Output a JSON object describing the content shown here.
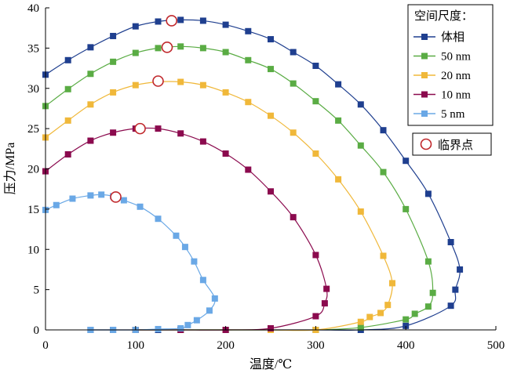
{
  "chart_data": {
    "type": "line",
    "xlabel": "温度/℃",
    "ylabel": "压力/MPa",
    "xlim": [
      0,
      500
    ],
    "ylim": [
      0,
      40
    ],
    "xticks": [
      "0",
      "100",
      "200",
      "300",
      "400",
      "500"
    ],
    "yticks": [
      "0",
      "5",
      "10",
      "15",
      "20",
      "25",
      "30",
      "35",
      "40"
    ],
    "grid": false,
    "legend_title": "空间尺度：",
    "legend_placement": "top-right",
    "series": [
      {
        "name": "体相",
        "color": "#1f3f8f",
        "x": [
          0,
          25,
          50,
          75,
          100,
          125,
          150,
          175,
          200,
          225,
          250,
          275,
          300,
          325,
          350,
          375,
          400,
          425,
          450,
          460,
          455,
          450,
          400,
          350,
          300,
          250,
          200,
          150,
          125,
          100,
          75,
          50
        ],
        "y": [
          31.7,
          33.5,
          35.1,
          36.5,
          37.7,
          38.3,
          38.5,
          38.4,
          37.9,
          37.1,
          36.1,
          34.5,
          32.8,
          30.5,
          28,
          24.8,
          21,
          16.9,
          10.9,
          7.5,
          5,
          3,
          0.5,
          0,
          0,
          0,
          0,
          0,
          0,
          0,
          0,
          0
        ]
      },
      {
        "name": "50 nm",
        "color": "#5aac44",
        "x": [
          0,
          25,
          50,
          75,
          100,
          125,
          150,
          175,
          200,
          225,
          250,
          275,
          300,
          325,
          350,
          375,
          400,
          425,
          430,
          425,
          410,
          400,
          350,
          300,
          250,
          200,
          150,
          100
        ],
        "y": [
          27.8,
          29.9,
          31.8,
          33.3,
          34.4,
          35,
          35.2,
          35,
          34.5,
          33.5,
          32.4,
          30.6,
          28.4,
          26,
          22.9,
          19.6,
          15,
          8.5,
          4.6,
          2.9,
          2,
          1.3,
          0.3,
          0,
          0,
          0,
          0,
          0
        ],
        "critical_point_index": 5
      },
      {
        "name": "20 nm",
        "color": "#f0b83a",
        "x": [
          0,
          25,
          50,
          75,
          100,
          125,
          150,
          175,
          200,
          225,
          250,
          275,
          300,
          325,
          350,
          375,
          385,
          380,
          372,
          360,
          350,
          300,
          250,
          200,
          150,
          100
        ],
        "y": [
          23.9,
          26,
          28,
          29.5,
          30.4,
          30.8,
          30.8,
          30.4,
          29.5,
          28.3,
          26.6,
          24.5,
          21.9,
          18.7,
          14.7,
          9.2,
          5.8,
          3.1,
          2.1,
          1.6,
          1,
          0,
          0,
          0,
          0,
          0
        ],
        "critical_point_index": 5
      },
      {
        "name": "10 nm",
        "color": "#8b0a4e",
        "x": [
          0,
          25,
          50,
          75,
          100,
          125,
          150,
          175,
          200,
          225,
          250,
          275,
          300,
          312,
          310,
          300,
          250,
          200,
          150,
          100
        ],
        "y": [
          19.7,
          21.8,
          23.5,
          24.5,
          25,
          25,
          24.4,
          23.4,
          21.9,
          19.9,
          17.2,
          14,
          9.3,
          5.1,
          3.3,
          1.7,
          0.2,
          0,
          0,
          0
        ],
        "critical_point_index": 4
      },
      {
        "name": "5 nm",
        "color": "#6aa8e6",
        "x": [
          0,
          12,
          30,
          50,
          62,
          75,
          87,
          105,
          125,
          145,
          155,
          165,
          175,
          188,
          182,
          168,
          158,
          150,
          125,
          100,
          75,
          50
        ],
        "y": [
          14.9,
          15.5,
          16.3,
          16.7,
          16.8,
          16.6,
          16.1,
          15.3,
          13.8,
          11.7,
          10.3,
          8.5,
          6.2,
          3.9,
          2.4,
          1.2,
          0.6,
          0.2,
          0.1,
          0,
          0,
          0
        ],
        "critical_point_index": 5
      }
    ],
    "critical_points": {
      "name": "临界点",
      "color": "#c0282c",
      "points": [
        {
          "x": 140,
          "y": 38.4
        },
        {
          "x": 135,
          "y": 35.1
        },
        {
          "x": 125,
          "y": 30.9
        },
        {
          "x": 105,
          "y": 25
        },
        {
          "x": 78,
          "y": 16.5
        }
      ]
    }
  }
}
